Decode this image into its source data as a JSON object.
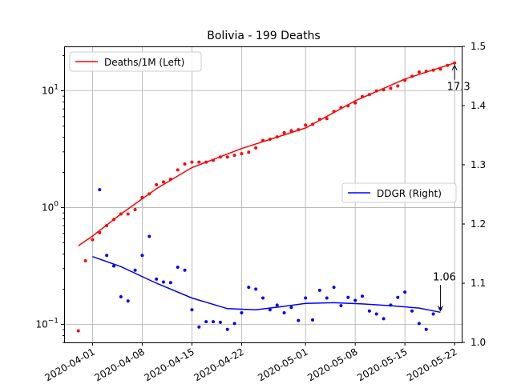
{
  "chart_data": {
    "type": "line",
    "title": "Bolivia - 199 Deaths",
    "xlabel": "",
    "ylabel_left": "",
    "ylabel_right": "",
    "x_range": [
      "2020-03-28",
      "2020-05-23"
    ],
    "x_ticks": [
      "2020-04-01",
      "2020-04-08",
      "2020-04-15",
      "2020-04-22",
      "2020-05-01",
      "2020-05-08",
      "2020-05-15",
      "2020-05-22"
    ],
    "y_left": {
      "scale": "log",
      "range": [
        0.07,
        24
      ],
      "ticks": [
        0.1,
        1,
        10
      ]
    },
    "y_right": {
      "scale": "linear",
      "range": [
        1.0,
        1.5
      ],
      "ticks": [
        "1.0",
        "1.1",
        "1.2",
        "1.3",
        "1.4",
        "1.5"
      ]
    },
    "grid": true,
    "legends": [
      {
        "label": "Deaths/1M (Left)",
        "color": "#ff0000",
        "placement": "top-left"
      },
      {
        "label": "DDGR (Right)",
        "color": "#0000ff",
        "placement": "center-right"
      }
    ],
    "series": [
      {
        "name": "Deaths/1M (Left)",
        "axis": "left",
        "color": "#ff0000",
        "points": [
          [
            "2020-03-30",
            0.088
          ],
          [
            "2020-03-31",
            0.35
          ],
          [
            "2020-04-01",
            0.53
          ],
          [
            "2020-04-02",
            0.61
          ],
          [
            "2020-04-03",
            0.7
          ],
          [
            "2020-04-04",
            0.79
          ],
          [
            "2020-04-05",
            0.88
          ],
          [
            "2020-04-06",
            0.88
          ],
          [
            "2020-04-07",
            0.96
          ],
          [
            "2020-04-08",
            1.22
          ],
          [
            "2020-04-09",
            1.31
          ],
          [
            "2020-04-10",
            1.57
          ],
          [
            "2020-04-11",
            1.66
          ],
          [
            "2020-04-12",
            1.75
          ],
          [
            "2020-04-13",
            2.1
          ],
          [
            "2020-04-14",
            2.36
          ],
          [
            "2020-04-15",
            2.45
          ],
          [
            "2020-04-16",
            2.45
          ],
          [
            "2020-04-17",
            2.45
          ],
          [
            "2020-04-18",
            2.54
          ],
          [
            "2020-04-19",
            2.71
          ],
          [
            "2020-04-20",
            2.71
          ],
          [
            "2020-04-21",
            2.8
          ],
          [
            "2020-04-22",
            2.89
          ],
          [
            "2020-04-23",
            2.98
          ],
          [
            "2020-04-24",
            3.24
          ],
          [
            "2020-04-25",
            3.76
          ],
          [
            "2020-04-26",
            3.85
          ],
          [
            "2020-04-27",
            4.03
          ],
          [
            "2020-04-28",
            4.38
          ],
          [
            "2020-04-29",
            4.55
          ],
          [
            "2020-04-30",
            4.64
          ],
          [
            "2020-05-01",
            5.08
          ],
          [
            "2020-05-02",
            5.16
          ],
          [
            "2020-05-03",
            5.69
          ],
          [
            "2020-05-04",
            5.78
          ],
          [
            "2020-05-05",
            6.65
          ],
          [
            "2020-05-06",
            7.18
          ],
          [
            "2020-05-07",
            7.44
          ],
          [
            "2020-05-08",
            7.88
          ],
          [
            "2020-05-09",
            8.93
          ],
          [
            "2020-05-10",
            9.28
          ],
          [
            "2020-05-11",
            9.98
          ],
          [
            "2020-05-12",
            10.2
          ],
          [
            "2020-05-13",
            10.5
          ],
          [
            "2020-05-14",
            11.0
          ],
          [
            "2020-05-15",
            12.3
          ],
          [
            "2020-05-16",
            13.3
          ],
          [
            "2020-05-17",
            14.5
          ],
          [
            "2020-05-18",
            14.7
          ],
          [
            "2020-05-19",
            15.0
          ],
          [
            "2020-05-20",
            15.3
          ],
          [
            "2020-05-21",
            16.5
          ],
          [
            "2020-05-22",
            17.3
          ]
        ],
        "fit": [
          [
            "2020-03-30",
            0.47
          ],
          [
            "2020-04-01",
            0.57
          ],
          [
            "2020-04-05",
            0.88
          ],
          [
            "2020-04-10",
            1.45
          ],
          [
            "2020-04-15",
            2.2
          ],
          [
            "2020-04-22",
            3.2
          ],
          [
            "2020-05-01",
            4.8
          ],
          [
            "2020-05-08",
            8.2
          ],
          [
            "2020-05-15",
            12.6
          ],
          [
            "2020-05-22",
            17.3
          ]
        ]
      },
      {
        "name": "DDGR (Right)",
        "axis": "right",
        "color": "#0000ff",
        "points": [
          [
            "2020-04-02",
            1.258
          ],
          [
            "2020-04-03",
            1.147
          ],
          [
            "2020-04-04",
            1.129
          ],
          [
            "2020-04-05",
            1.077
          ],
          [
            "2020-04-06",
            1.07
          ],
          [
            "2020-04-07",
            1.122
          ],
          [
            "2020-04-08",
            1.147
          ],
          [
            "2020-04-09",
            1.179
          ],
          [
            "2020-04-10",
            1.107
          ],
          [
            "2020-04-11",
            1.102
          ],
          [
            "2020-04-12",
            1.101
          ],
          [
            "2020-04-13",
            1.127
          ],
          [
            "2020-04-14",
            1.122
          ],
          [
            "2020-04-15",
            1.055
          ],
          [
            "2020-04-16",
            1.026
          ],
          [
            "2020-04-17",
            1.035
          ],
          [
            "2020-04-18",
            1.035
          ],
          [
            "2020-04-19",
            1.034
          ],
          [
            "2020-04-20",
            1.022
          ],
          [
            "2020-04-21",
            1.032
          ],
          [
            "2020-04-22",
            1.05
          ],
          [
            "2020-04-23",
            1.093
          ],
          [
            "2020-04-24",
            1.09
          ],
          [
            "2020-04-25",
            1.075
          ],
          [
            "2020-04-26",
            1.055
          ],
          [
            "2020-04-27",
            1.063
          ],
          [
            "2020-04-28",
            1.05
          ],
          [
            "2020-04-29",
            1.059
          ],
          [
            "2020-04-30",
            1.037
          ],
          [
            "2020-05-01",
            1.075
          ],
          [
            "2020-05-02",
            1.038
          ],
          [
            "2020-05-03",
            1.088
          ],
          [
            "2020-05-04",
            1.075
          ],
          [
            "2020-05-05",
            1.093
          ],
          [
            "2020-05-06",
            1.062
          ],
          [
            "2020-05-07",
            1.076
          ],
          [
            "2020-05-08",
            1.071
          ],
          [
            "2020-05-09",
            1.078
          ],
          [
            "2020-05-10",
            1.053
          ],
          [
            "2020-05-11",
            1.048
          ],
          [
            "2020-05-12",
            1.04
          ],
          [
            "2020-05-13",
            1.063
          ],
          [
            "2020-05-14",
            1.076
          ],
          [
            "2020-05-15",
            1.085
          ],
          [
            "2020-05-16",
            1.053
          ],
          [
            "2020-05-17",
            1.032
          ],
          [
            "2020-05-18",
            1.022
          ],
          [
            "2020-05-19",
            1.048
          ],
          [
            "2020-05-20",
            1.057
          ]
        ],
        "fit": [
          [
            "2020-04-01",
            1.145
          ],
          [
            "2020-04-05",
            1.128
          ],
          [
            "2020-04-10",
            1.1
          ],
          [
            "2020-04-15",
            1.075
          ],
          [
            "2020-04-20",
            1.057
          ],
          [
            "2020-04-24",
            1.055
          ],
          [
            "2020-04-28",
            1.061
          ],
          [
            "2020-05-01",
            1.066
          ],
          [
            "2020-05-05",
            1.067
          ],
          [
            "2020-05-09",
            1.065
          ],
          [
            "2020-05-13",
            1.062
          ],
          [
            "2020-05-17",
            1.058
          ],
          [
            "2020-05-20",
            1.051
          ]
        ]
      }
    ],
    "annotations": [
      {
        "text": "17.3",
        "series": "Deaths/1M (Left)",
        "at": "2020-05-20"
      },
      {
        "text": "1.06",
        "series": "DDGR (Right)",
        "at": "2020-05-20"
      }
    ]
  }
}
